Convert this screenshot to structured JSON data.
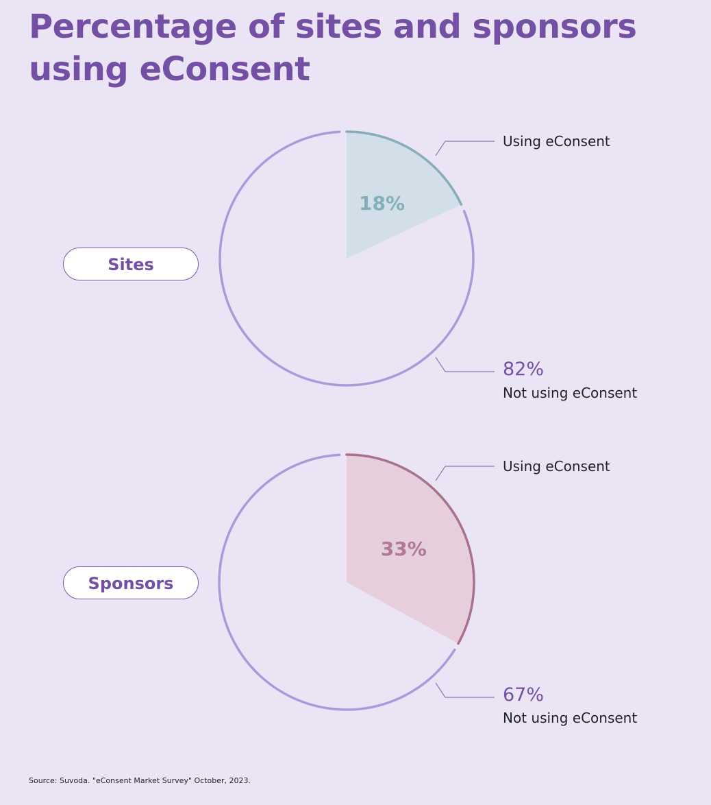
{
  "title": "Percentage of sites and sponsors using eConsent",
  "source": "Source: Suvoda. \"eConsent Market Survey\" October, 2023.",
  "chart_data": [
    {
      "type": "pie",
      "group": "Sites",
      "slices": [
        {
          "label": "Using eConsent",
          "value": 18,
          "display": "18%",
          "fill": "#D3DFE8",
          "stroke": "#86AEBA",
          "text_color": "#86AEBA"
        },
        {
          "label": "Not using eConsent",
          "value": 82,
          "display": "82%",
          "fill": "none",
          "stroke": "#AE98DA"
        }
      ]
    },
    {
      "type": "pie",
      "group": "Sponsors",
      "slices": [
        {
          "label": "Using eConsent",
          "value": 33,
          "display": "33%",
          "fill": "#E6CEDD",
          "stroke": "#A8728F",
          "text_color": "#B07A96"
        },
        {
          "label": "Not using eConsent",
          "value": 67,
          "display": "67%",
          "fill": "none",
          "stroke": "#AE98DA"
        }
      ]
    }
  ]
}
